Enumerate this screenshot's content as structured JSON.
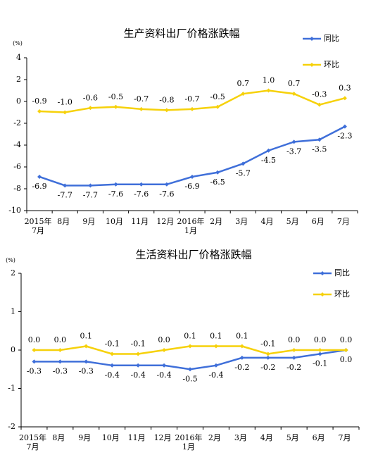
{
  "chart_data": [
    {
      "type": "line",
      "title": "生产资料出厂价格涨跌幅",
      "y_unit": "(%)",
      "categories": [
        "2015年\n7月",
        "8月",
        "9月",
        "10月",
        "11月",
        "12月",
        "2016年\n1月",
        "2月",
        "3月",
        "4月",
        "5月",
        "6月",
        "7月"
      ],
      "series": [
        {
          "name": "同比",
          "color": "#3f6fd9",
          "values": [
            -6.9,
            -7.7,
            -7.7,
            -7.6,
            -7.6,
            -7.6,
            -6.9,
            -6.5,
            -5.7,
            -4.5,
            -3.7,
            -3.5,
            -2.3
          ],
          "value_labels": [
            "-6.9",
            "-7.7",
            "-7.7",
            "-7.6",
            "-7.6",
            "-7.6",
            "-6.9",
            "-6.5",
            "-5.7",
            "-4.5",
            "-3.7",
            "-3.5",
            "-2.3"
          ]
        },
        {
          "name": "环比",
          "color": "#f6d10a",
          "values": [
            -0.9,
            -1.0,
            -0.6,
            -0.5,
            -0.7,
            -0.8,
            -0.7,
            -0.5,
            0.7,
            1.0,
            0.7,
            -0.3,
            0.3
          ],
          "value_labels": [
            "-0.9",
            "-1.0",
            "-0.6",
            "-0.5",
            "-0.7",
            "-0.8",
            "-0.7",
            "-0.5",
            "0.7",
            "1.0",
            "0.7",
            "-0.3",
            "0.3"
          ]
        }
      ],
      "ylim": [
        -10,
        4
      ],
      "yticks": [
        -10,
        -8,
        -6,
        -4,
        -2,
        0,
        2,
        4
      ],
      "legend": "top-right"
    },
    {
      "type": "line",
      "title": "生活资料出厂价格涨跌幅",
      "y_unit": "(%)",
      "categories": [
        "2015年\n7月",
        "8月",
        "9月",
        "10月",
        "11月",
        "12月",
        "2016年\n1月",
        "2月",
        "3月",
        "4月",
        "5月",
        "6月",
        "7月"
      ],
      "series": [
        {
          "name": "同比",
          "color": "#3f6fd9",
          "values": [
            -0.3,
            -0.3,
            -0.3,
            -0.4,
            -0.4,
            -0.4,
            -0.5,
            -0.4,
            -0.2,
            -0.2,
            -0.2,
            -0.1,
            0.0
          ],
          "value_labels": [
            "-0.3",
            "-0.3",
            "-0.3",
            "-0.4",
            "-0.4",
            "-0.4",
            "-0.5",
            "-0.4",
            "-0.2",
            "-0.2",
            "-0.2",
            "-0.1",
            "0.0"
          ]
        },
        {
          "name": "环比",
          "color": "#f6d10a",
          "values": [
            0.0,
            0.0,
            0.1,
            -0.1,
            -0.1,
            0.0,
            0.1,
            0.1,
            0.1,
            -0.1,
            0.0,
            0.0,
            0.0
          ],
          "value_labels": [
            "0.0",
            "0.0",
            "0.1",
            "-0.1",
            "-0.1",
            "0.0",
            "0.1",
            "0.1",
            "0.1",
            "-0.1",
            "0.0",
            "0.0",
            "0.0"
          ]
        }
      ],
      "ylim": [
        -2,
        2
      ],
      "yticks": [
        -2,
        -1,
        0,
        1,
        2
      ],
      "legend": "top-right"
    }
  ]
}
